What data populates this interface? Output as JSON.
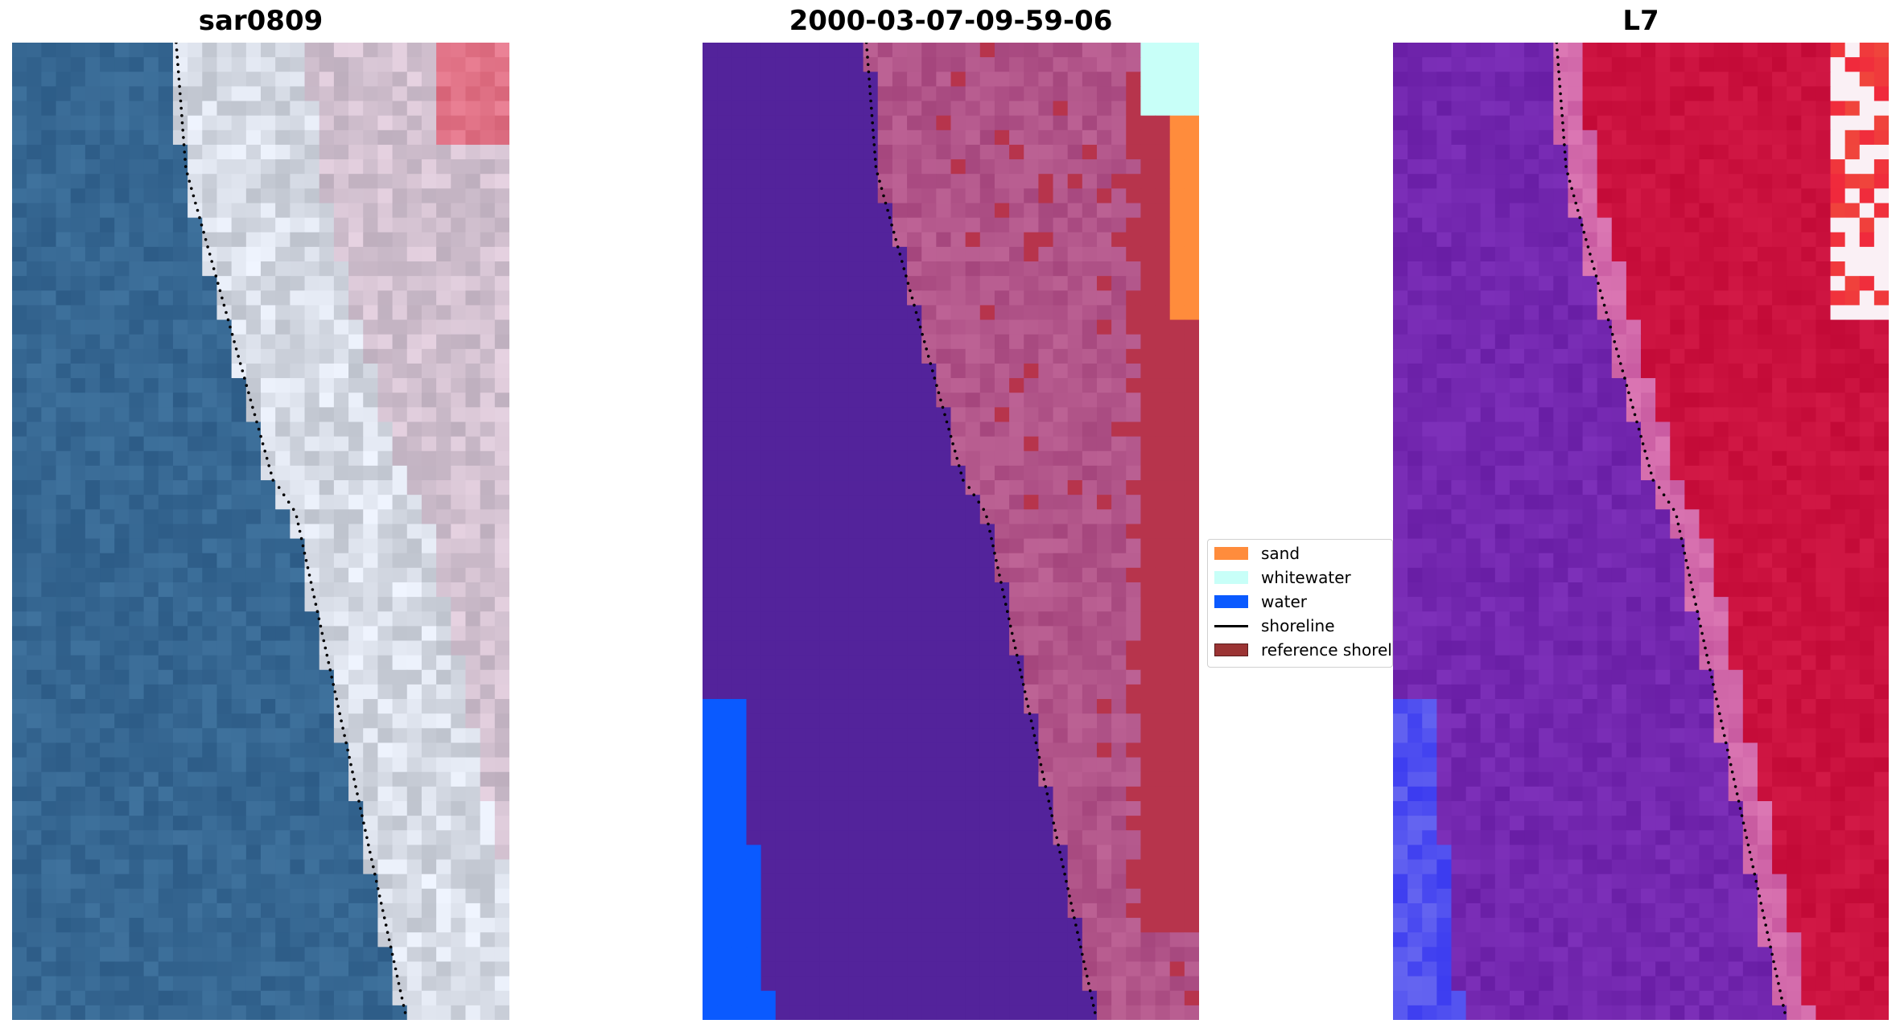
{
  "panels": [
    {
      "id": "rgb",
      "title": "sar0809",
      "style": "rgb"
    },
    {
      "id": "class",
      "title": "2000-03-07-09-59-06",
      "style": "classified"
    },
    {
      "id": "index",
      "title": "L7",
      "style": "index"
    }
  ],
  "legend": {
    "items": [
      {
        "label": "sand",
        "color": "#FF8C3C",
        "kind": "patch"
      },
      {
        "label": "whitewater",
        "color": "#C8FFF8",
        "kind": "patch"
      },
      {
        "label": "water",
        "color": "#0A5AFF",
        "kind": "patch"
      },
      {
        "label": "shoreline",
        "color": "#000000",
        "kind": "line"
      },
      {
        "label": "reference shoreline",
        "color": "#9B3434",
        "kind": "patch"
      }
    ]
  },
  "colors": {
    "water_rgb": "#2F5F8A",
    "land_class": "#A34D7E",
    "water_class": "#53239B",
    "land_index": "#C20F3C",
    "water_index": "#7020A2"
  }
}
